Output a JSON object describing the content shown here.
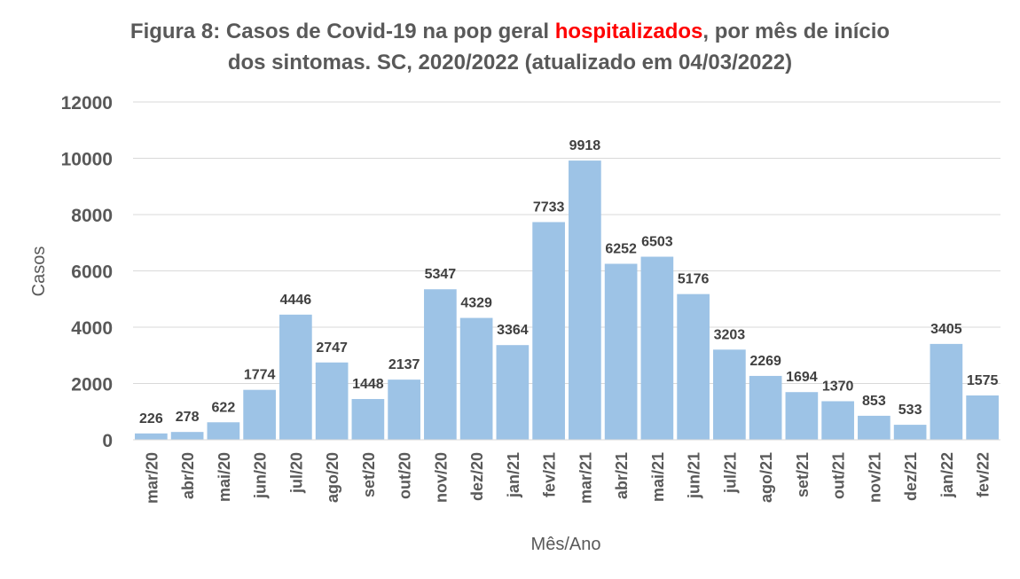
{
  "title": {
    "line1_prefix": "Figura 8: Casos de Covid-19 na pop geral ",
    "line1_highlight": "hospitalizados",
    "line1_suffix": ", por mês de início",
    "line2": "dos sintomas. SC, 2020/2022 (atualizado em 04/03/2022)",
    "highlight_color": "#ff0000"
  },
  "chart_data": {
    "type": "bar",
    "title": "Figura 8: Casos de Covid-19 na pop geral hospitalizados, por mês de início dos sintomas. SC, 2020/2022 (atualizado em 04/03/2022)",
    "xlabel": "Mês/Ano",
    "ylabel": "Casos",
    "ylim": [
      0,
      12000
    ],
    "yticks": [
      0,
      2000,
      4000,
      6000,
      8000,
      10000,
      12000
    ],
    "grid": true,
    "legend": "none",
    "bar_color": "#9dc3e6",
    "categories": [
      "mar/20",
      "abr/20",
      "mai/20",
      "jun/20",
      "jul/20",
      "ago/20",
      "set/20",
      "out/20",
      "nov/20",
      "dez/20",
      "jan/21",
      "fev/21",
      "mar/21",
      "abr/21",
      "mai/21",
      "jun/21",
      "jul/21",
      "ago/21",
      "set/21",
      "out/21",
      "nov/21",
      "dez/21",
      "jan/22",
      "fev/22"
    ],
    "values": [
      226,
      278,
      622,
      1774,
      4446,
      2747,
      1448,
      2137,
      5347,
      4329,
      3364,
      7733,
      9918,
      6252,
      6503,
      5176,
      3203,
      2269,
      1694,
      1370,
      853,
      533,
      3405,
      1575
    ]
  }
}
